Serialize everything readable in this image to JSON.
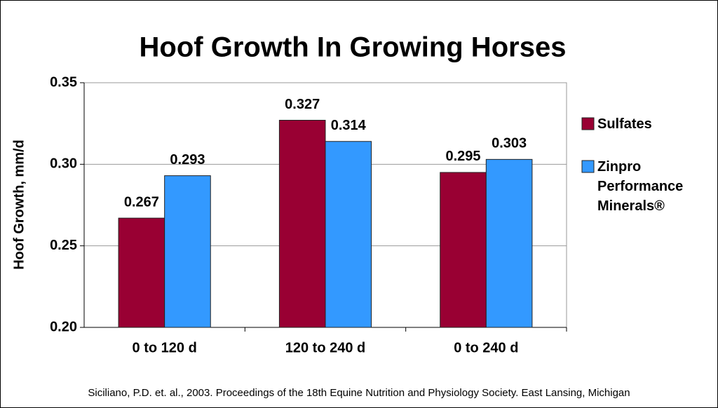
{
  "chart_data": {
    "type": "bar",
    "title": "Hoof Growth In Growing Horses",
    "y_label": "Hoof Growth, mm/d",
    "categories": [
      "0 to 120 d",
      "120 to 240 d",
      "0 to 240 d"
    ],
    "series": [
      {
        "name": "Sulfates",
        "color": "#990033",
        "values": [
          0.267,
          0.327,
          0.295
        ]
      },
      {
        "name": "Zinpro Performance Minerals®",
        "color": "#3399ff",
        "values": [
          0.293,
          0.314,
          0.303
        ]
      }
    ],
    "ylim": [
      0.2,
      0.35
    ],
    "yticks": [
      {
        "value": 0.2,
        "label": "0.20"
      },
      0.25,
      {
        "value": 0.3,
        "label": "0.30"
      },
      0.35
    ],
    "grid": true,
    "legend": "right",
    "source": "Siciliano, P.D. et. al., 2003. Proceedings of the 18th Equine Nutrition and Physiology Society. East Lansing, Michigan"
  }
}
